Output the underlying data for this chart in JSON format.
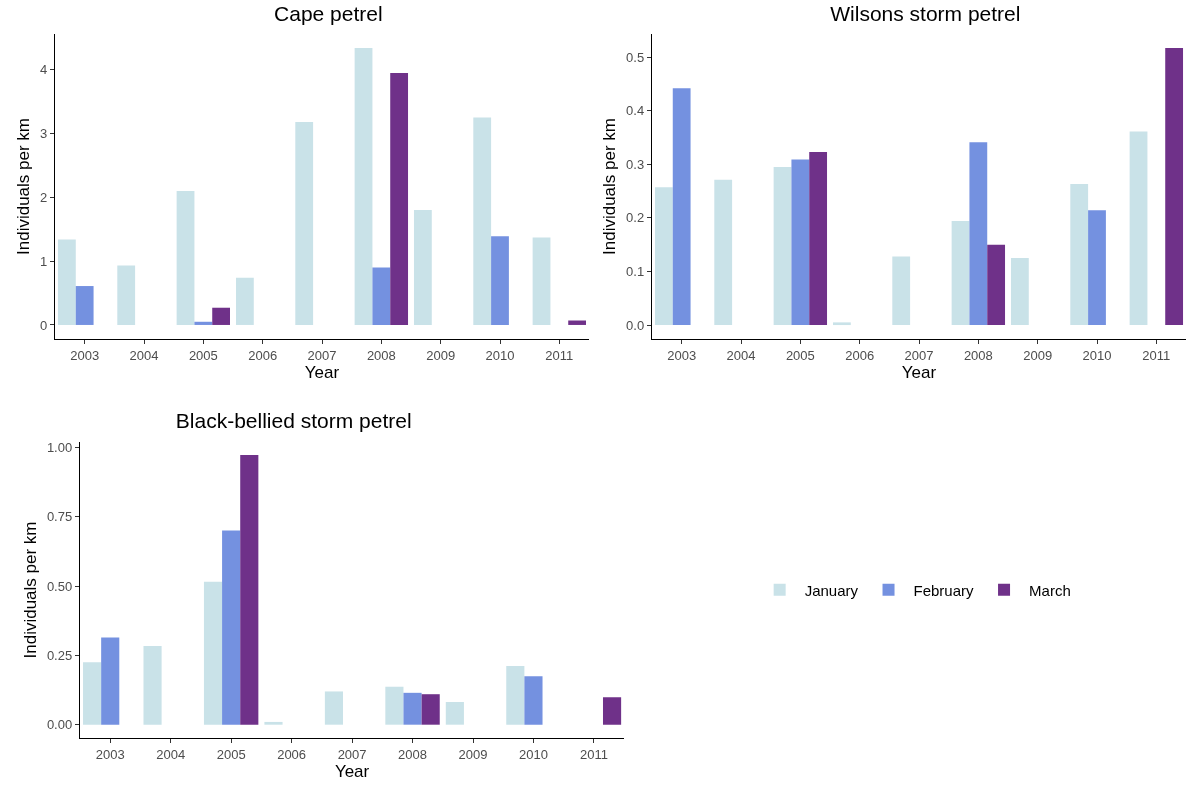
{
  "chart_data": [
    {
      "type": "bar",
      "title": "Cape petrel",
      "xlabel": "Year",
      "ylabel": "Individuals per km",
      "categories": [
        "2003",
        "2004",
        "2005",
        "2006",
        "2007",
        "2008",
        "2009",
        "2010",
        "2011"
      ],
      "series": [
        {
          "color": "#c9e2e8",
          "values": [
            1.34,
            0.93,
            2.1,
            0.74,
            3.18,
            4.34,
            1.8,
            3.25,
            1.37
          ]
        },
        {
          "color": "#7491e0",
          "values": [
            0.61,
            null,
            0.05,
            null,
            null,
            0.9,
            null,
            1.39,
            null
          ]
        },
        {
          "color": "#6f3189",
          "values": [
            null,
            null,
            0.27,
            null,
            null,
            3.95,
            null,
            null,
            0.07
          ]
        }
      ],
      "ylim": [
        -0.22,
        4.56
      ],
      "yticks": [
        0,
        1,
        2,
        3,
        4
      ],
      "grid": false,
      "legend": false
    },
    {
      "type": "bar",
      "title": "Wilsons storm petrel",
      "xlabel": "Year",
      "ylabel": "Individuals per km",
      "categories": [
        "2003",
        "2004",
        "2005",
        "2006",
        "2007",
        "2008",
        "2009",
        "2010",
        "2011"
      ],
      "series": [
        {
          "color": "#c9e2e8",
          "values": [
            0.257,
            0.271,
            0.295,
            0.005,
            0.128,
            0.194,
            0.125,
            0.263,
            0.361
          ]
        },
        {
          "color": "#7491e0",
          "values": [
            0.442,
            null,
            0.309,
            null,
            null,
            0.341,
            null,
            0.214,
            null
          ]
        },
        {
          "color": "#6f3189",
          "values": [
            null,
            null,
            0.323,
            null,
            null,
            0.15,
            null,
            null,
            0.517
          ]
        }
      ],
      "ylim": [
        -0.026,
        0.543
      ],
      "yticks": [
        {
          "value": 0,
          "label": "0.0"
        },
        {
          "value": 0.1,
          "label": "0.1"
        },
        {
          "value": 0.2,
          "label": "0.2"
        },
        {
          "value": 0.3,
          "label": "0.3"
        },
        {
          "value": 0.4,
          "label": "0.4"
        },
        {
          "value": 0.5,
          "label": "0.5"
        }
      ],
      "grid": false,
      "legend": false
    },
    {
      "type": "bar",
      "title": "Black-bellied storm petrel",
      "xlabel": "Year",
      "ylabel": "Individuals per km",
      "categories": [
        "2003",
        "2004",
        "2005",
        "2006",
        "2007",
        "2008",
        "2009",
        "2010",
        "2011"
      ],
      "series": [
        {
          "name": "January",
          "color": "#c9e2e8",
          "values": [
            0.225,
            0.284,
            0.516,
            0.01,
            0.12,
            0.137,
            0.082,
            0.212,
            null
          ]
        },
        {
          "name": "February",
          "color": "#7491e0",
          "values": [
            0.315,
            null,
            0.701,
            null,
            null,
            0.115,
            null,
            0.175,
            null
          ]
        },
        {
          "name": "March",
          "color": "#6f3189",
          "values": [
            null,
            null,
            0.973,
            null,
            null,
            0.11,
            null,
            null,
            0.099
          ]
        }
      ],
      "ylim": [
        -0.048,
        1.02
      ],
      "yticks": [
        {
          "value": 0,
          "label": "0.00"
        },
        {
          "value": 0.25,
          "label": "0.25"
        },
        {
          "value": 0.5,
          "label": "0.50"
        },
        {
          "value": 0.75,
          "label": "0.75"
        },
        {
          "value": 1,
          "label": "1.00"
        }
      ],
      "grid": false,
      "legend": "right"
    }
  ]
}
